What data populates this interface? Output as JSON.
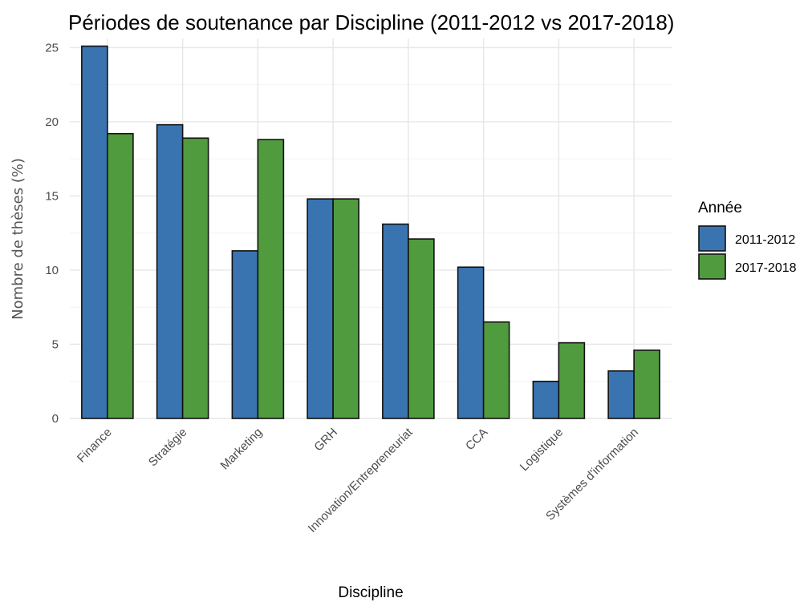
{
  "chart_data": {
    "type": "bar",
    "title": "Périodes de soutenance par Discipline (2011-2012 vs 2017-2018)",
    "xlabel": "Discipline",
    "ylabel": "Nombre de thèses (%)",
    "ylim": [
      0,
      25
    ],
    "yticks": [
      0,
      5,
      10,
      15,
      20,
      25
    ],
    "grid": true,
    "legend": {
      "title": "Année",
      "placement": "right"
    },
    "categories": [
      "Finance",
      "Stratégie",
      "Marketing",
      "GRH",
      "Innovation/Entrepreneuriat",
      "CCA",
      "Logistique",
      "Systèmes d'information"
    ],
    "series": [
      {
        "name": "2011-2012",
        "color": "#3a74b0",
        "values": [
          25.1,
          19.8,
          11.3,
          14.8,
          13.1,
          10.2,
          2.5,
          3.2
        ]
      },
      {
        "name": "2017-2018",
        "color": "#519b3f",
        "values": [
          19.2,
          18.9,
          18.8,
          14.8,
          12.1,
          6.5,
          5.1,
          4.6
        ]
      }
    ]
  }
}
